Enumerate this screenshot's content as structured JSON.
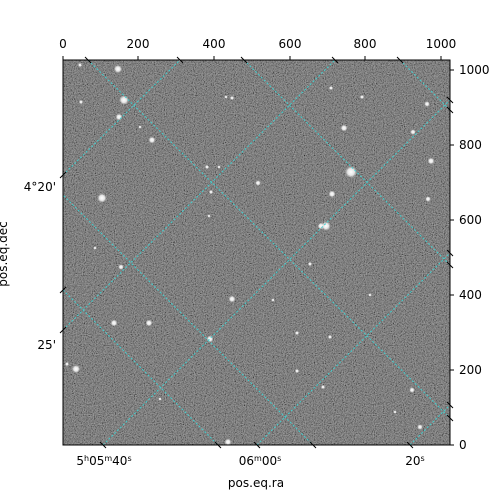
{
  "figure": {
    "type": "astronomical image with WCS coordinate grid",
    "xlabel": "pos.eq.ra",
    "ylabel": "pos.eq.dec",
    "pixel_axes": {
      "top_ticks": [
        "0",
        "200",
        "400",
        "600",
        "800",
        "1000"
      ],
      "right_ticks": [
        "0",
        "200",
        "400",
        "600",
        "800",
        "1000"
      ],
      "x_range": [
        0,
        1024
      ],
      "y_range": [
        0,
        1024
      ]
    },
    "world_axes": {
      "ra_ticks": [
        {
          "h": "5",
          "m": "05",
          "s": "40",
          "label_parts": [
            "5",
            "h",
            "05",
            "m",
            "40",
            "s"
          ]
        },
        {
          "m": "06",
          "s": "00",
          "label_parts": [
            "06",
            "m",
            "00",
            "s"
          ]
        },
        {
          "s": "20",
          "label_parts": [
            "20",
            "s"
          ]
        }
      ],
      "dec_ticks": [
        "4°20'",
        "25'"
      ]
    },
    "colors": {
      "grid": "#40d0d0",
      "image_background": "#5a5a5a",
      "frame": "#000000"
    },
    "colormap": "gray"
  }
}
